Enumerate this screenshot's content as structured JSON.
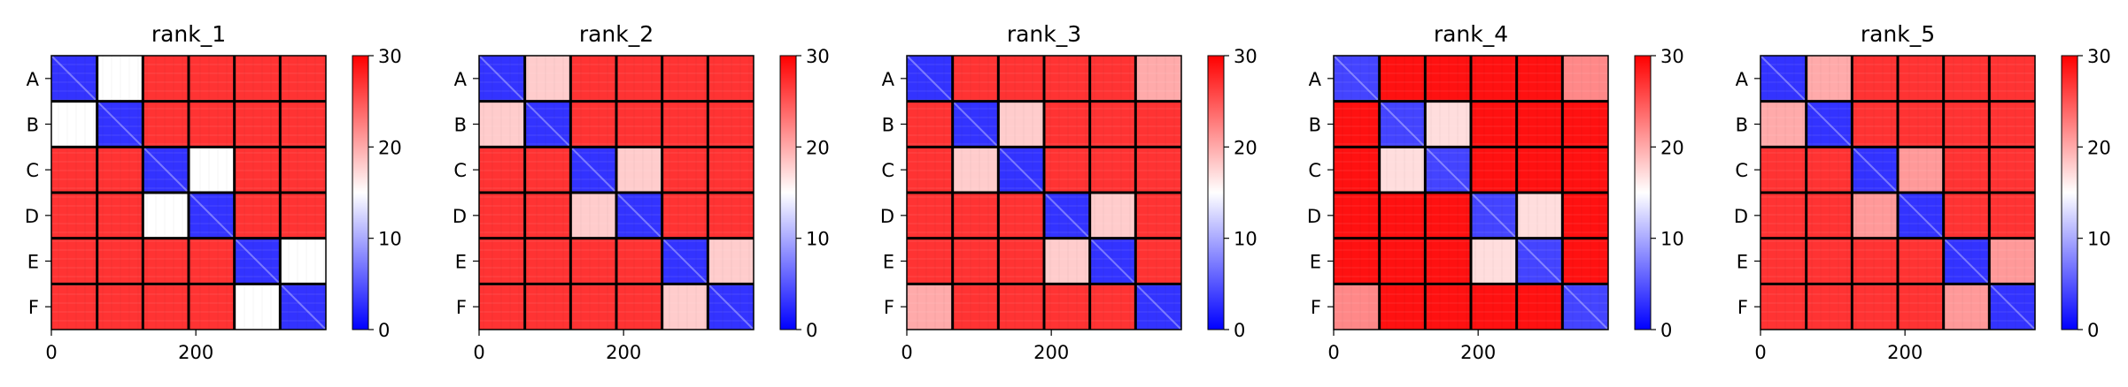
{
  "figure": {
    "panel_count": 5
  },
  "chart_data": [
    {
      "type": "heatmap",
      "title": "rank_1",
      "row_labels": [
        "A",
        "B",
        "C",
        "D",
        "E",
        "F"
      ],
      "col_labels": [
        "A",
        "B",
        "C",
        "D",
        "E",
        "F"
      ],
      "x_ticks": [
        0,
        200
      ],
      "xlim": [
        0,
        380
      ],
      "ylim": [
        0,
        380
      ],
      "colorbar": {
        "range": [
          0,
          30
        ],
        "ticks": [
          0,
          10,
          20,
          30
        ],
        "colors": [
          "#0000ff",
          "#ffffff",
          "#ff0000"
        ]
      },
      "block_values": [
        [
          3,
          15,
          27,
          27,
          27,
          27
        ],
        [
          15,
          3,
          27,
          27,
          27,
          27
        ],
        [
          27,
          27,
          3,
          15,
          27,
          27
        ],
        [
          27,
          27,
          15,
          3,
          27,
          27
        ],
        [
          27,
          27,
          27,
          27,
          3,
          15
        ],
        [
          27,
          27,
          27,
          27,
          15,
          3
        ]
      ]
    },
    {
      "type": "heatmap",
      "title": "rank_2",
      "row_labels": [
        "A",
        "B",
        "C",
        "D",
        "E",
        "F"
      ],
      "col_labels": [
        "A",
        "B",
        "C",
        "D",
        "E",
        "F"
      ],
      "x_ticks": [
        0,
        200
      ],
      "xlim": [
        0,
        380
      ],
      "ylim": [
        0,
        380
      ],
      "colorbar": {
        "range": [
          0,
          30
        ],
        "ticks": [
          0,
          10,
          20,
          30
        ],
        "colors": [
          "#0000ff",
          "#ffffff",
          "#ff0000"
        ]
      },
      "block_values": [
        [
          3,
          18,
          27,
          27,
          27,
          27
        ],
        [
          18,
          3,
          27,
          27,
          27,
          27
        ],
        [
          27,
          27,
          3,
          18,
          27,
          27
        ],
        [
          27,
          27,
          18,
          3,
          27,
          27
        ],
        [
          27,
          27,
          27,
          27,
          3,
          18
        ],
        [
          27,
          27,
          27,
          27,
          18,
          3
        ]
      ]
    },
    {
      "type": "heatmap",
      "title": "rank_3",
      "row_labels": [
        "A",
        "B",
        "C",
        "D",
        "E",
        "F"
      ],
      "col_labels": [
        "A",
        "B",
        "C",
        "D",
        "E",
        "F"
      ],
      "x_ticks": [
        0,
        200
      ],
      "xlim": [
        0,
        380
      ],
      "ylim": [
        0,
        380
      ],
      "colorbar": {
        "range": [
          0,
          30
        ],
        "ticks": [
          0,
          10,
          20,
          30
        ],
        "colors": [
          "#0000ff",
          "#ffffff",
          "#ff0000"
        ]
      },
      "block_values": [
        [
          3,
          27,
          27,
          27,
          27,
          20
        ],
        [
          27,
          3,
          18,
          27,
          27,
          27
        ],
        [
          27,
          18,
          3,
          27,
          27,
          27
        ],
        [
          27,
          27,
          27,
          3,
          18,
          27
        ],
        [
          27,
          27,
          27,
          18,
          3,
          27
        ],
        [
          20,
          27,
          27,
          27,
          27,
          3
        ]
      ]
    },
    {
      "type": "heatmap",
      "title": "rank_4",
      "row_labels": [
        "A",
        "B",
        "C",
        "D",
        "E",
        "F"
      ],
      "col_labels": [
        "A",
        "B",
        "C",
        "D",
        "E",
        "F"
      ],
      "x_ticks": [
        0,
        200
      ],
      "xlim": [
        0,
        380
      ],
      "ylim": [
        0,
        380
      ],
      "colorbar": {
        "range": [
          0,
          30
        ],
        "ticks": [
          0,
          10,
          20,
          30
        ],
        "colors": [
          "#0000ff",
          "#ffffff",
          "#ff0000"
        ]
      },
      "block_values": [
        [
          4,
          29,
          29,
          29,
          29,
          22
        ],
        [
          29,
          4,
          17,
          29,
          29,
          29
        ],
        [
          29,
          17,
          4,
          29,
          29,
          29
        ],
        [
          29,
          29,
          29,
          4,
          17,
          29
        ],
        [
          29,
          29,
          29,
          17,
          4,
          29
        ],
        [
          22,
          29,
          29,
          29,
          29,
          4
        ]
      ]
    },
    {
      "type": "heatmap",
      "title": "rank_5",
      "row_labels": [
        "A",
        "B",
        "C",
        "D",
        "E",
        "F"
      ],
      "col_labels": [
        "A",
        "B",
        "C",
        "D",
        "E",
        "F"
      ],
      "x_ticks": [
        0,
        200
      ],
      "xlim": [
        0,
        380
      ],
      "ylim": [
        0,
        380
      ],
      "colorbar": {
        "range": [
          0,
          30
        ],
        "ticks": [
          0,
          10,
          20,
          30
        ],
        "colors": [
          "#0000ff",
          "#ffffff",
          "#ff0000"
        ]
      },
      "block_values": [
        [
          3,
          20,
          27,
          27,
          27,
          27
        ],
        [
          20,
          3,
          27,
          27,
          27,
          27
        ],
        [
          27,
          27,
          3,
          21,
          27,
          27
        ],
        [
          27,
          27,
          21,
          3,
          27,
          27
        ],
        [
          27,
          27,
          27,
          27,
          3,
          21
        ],
        [
          27,
          27,
          27,
          27,
          21,
          3
        ]
      ]
    }
  ]
}
